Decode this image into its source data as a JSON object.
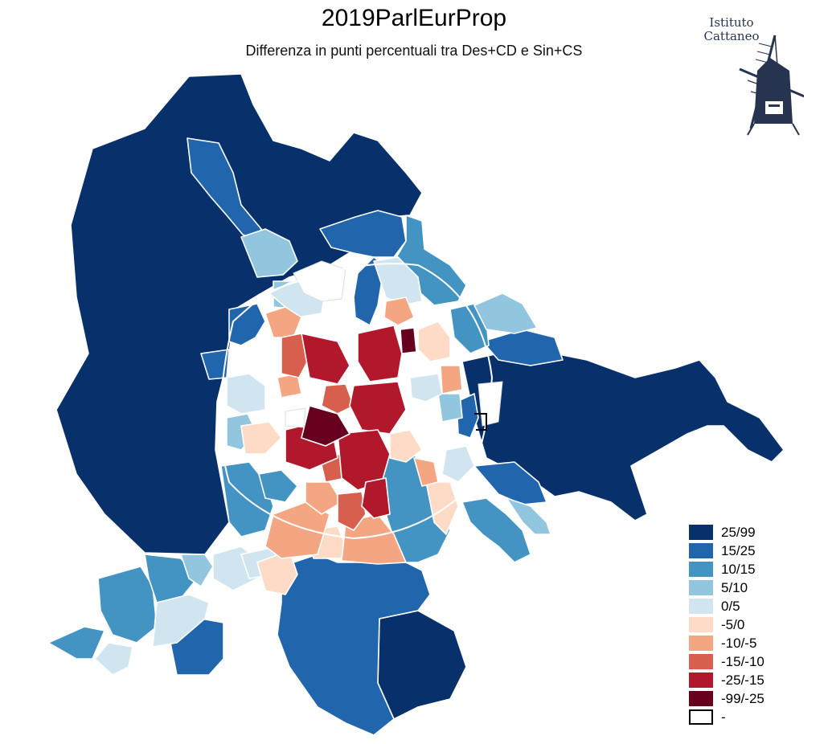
{
  "title": "2019ParlEurProp",
  "subtitle": "Differenza in punti percentuali tra Des+CD e Sin+CS",
  "logo": {
    "line1": "Istituto",
    "line2": "Cattaneo",
    "icon": "windmill-icon"
  },
  "colors": {
    "c0": "#08306b",
    "c1": "#2166ac",
    "c2": "#4393c3",
    "c3": "#92c5de",
    "c4": "#d1e5f0",
    "c5": "#fddbc7",
    "c6": "#f4a582",
    "c7": "#d6604d",
    "c8": "#b2182b",
    "c9": "#67001f",
    "na": "#ffffff",
    "border": "#ffffff"
  },
  "legend": [
    {
      "label": "25/99",
      "color": "#08306b"
    },
    {
      "label": "15/25",
      "color": "#2166ac"
    },
    {
      "label": "10/15",
      "color": "#4393c3"
    },
    {
      "label": "5/10",
      "color": "#92c5de"
    },
    {
      "label": "0/5",
      "color": "#d1e5f0"
    },
    {
      "label": "-5/0",
      "color": "#fddbc7"
    },
    {
      "label": "-10/-5",
      "color": "#f4a582"
    },
    {
      "label": "-15/-10",
      "color": "#d6604d"
    },
    {
      "label": "-25/-15",
      "color": "#b2182b"
    },
    {
      "label": "-99/-25",
      "color": "#67001f"
    },
    {
      "label": "-",
      "color": "#ffffff"
    }
  ]
}
